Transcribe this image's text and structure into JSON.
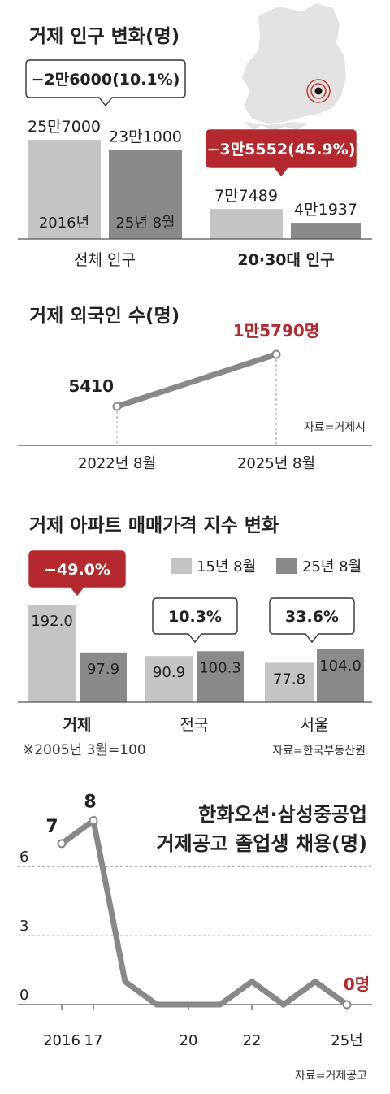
{
  "colors": {
    "light": "#c4c4c4",
    "dark": "#8a8a8a",
    "accent": "#b5282d",
    "text": "#222222",
    "line": "#888888"
  },
  "chart_data": [
    {
      "type": "bar",
      "title": "거제 인구 변화(명)",
      "groups": [
        {
          "label": "전체 인구",
          "bold": false,
          "bars": [
            {
              "value": 257000,
              "value_label": "25만7000",
              "inner_label": "2016년",
              "shade": "light"
            },
            {
              "value": 231000,
              "value_label": "23만1000",
              "inner_label": "25년 8월",
              "shade": "dark"
            }
          ],
          "callout": "−2만6000(10.1%)",
          "callout_style": "outline"
        },
        {
          "label": "20·30대 인구",
          "bold": true,
          "bars": [
            {
              "value": 77489,
              "value_label": "7만7489",
              "inner_label": "",
              "shade": "light"
            },
            {
              "value": 41937,
              "value_label": "4만1937",
              "inner_label": "",
              "shade": "dark"
            }
          ],
          "callout": "−3만5552(45.9%)",
          "callout_style": "filled"
        }
      ]
    },
    {
      "type": "line",
      "title": "거제 외국인 수(명)",
      "x": [
        "2022년 8월",
        "2025년 8월"
      ],
      "values": [
        5410,
        15790
      ],
      "point_labels": [
        "5410",
        "1만5790명"
      ],
      "source": "자료=거제시"
    },
    {
      "type": "bar",
      "title": "거제 아파트 매매가격 지수 변화",
      "legend": [
        {
          "label": "15년 8월",
          "shade": "light"
        },
        {
          "label": "25년 8월",
          "shade": "dark"
        }
      ],
      "categories": [
        {
          "label": "거제",
          "bold": true,
          "v15": 192.0,
          "v25": 97.9,
          "l15": "192.0",
          "l25": "97.9",
          "callout": "−49.0%",
          "callout_style": "filled"
        },
        {
          "label": "전국",
          "bold": false,
          "v15": 90.9,
          "v25": 100.3,
          "l15": "90.9",
          "l25": "100.3",
          "callout": "10.3%",
          "callout_style": "outline"
        },
        {
          "label": "서울",
          "bold": false,
          "v15": 77.8,
          "v25": 104.0,
          "l15": "77.8",
          "l25": "104.0",
          "callout": "33.6%",
          "callout_style": "outline"
        }
      ],
      "note": "※2005년 3월=100",
      "source": "자료=한국부동산원"
    },
    {
      "type": "line",
      "title_lines": [
        "한화오션·삼성중공업",
        "거제공고 졸업생 채용(명)"
      ],
      "x": [
        2016,
        2017,
        2018,
        2019,
        2020,
        2021,
        2022,
        2023,
        2024,
        2025
      ],
      "values": [
        7,
        8,
        1,
        0,
        0,
        0,
        1,
        0,
        1,
        0
      ],
      "x_tick_labels": [
        {
          "x": 2016,
          "label": "2016"
        },
        {
          "x": 2017,
          "label": "17"
        },
        {
          "x": 2020,
          "label": "20"
        },
        {
          "x": 2022,
          "label": "22"
        },
        {
          "x": 2025,
          "label": "25년"
        }
      ],
      "y_ticks": [
        "0",
        "3",
        "6"
      ],
      "y_tick_values": [
        0,
        3,
        6
      ],
      "point_labels": [
        {
          "index": 0,
          "label": "7"
        },
        {
          "index": 1,
          "label": "8"
        },
        {
          "index": 9,
          "label": "0명"
        }
      ],
      "source": "자료=거제공고"
    }
  ]
}
